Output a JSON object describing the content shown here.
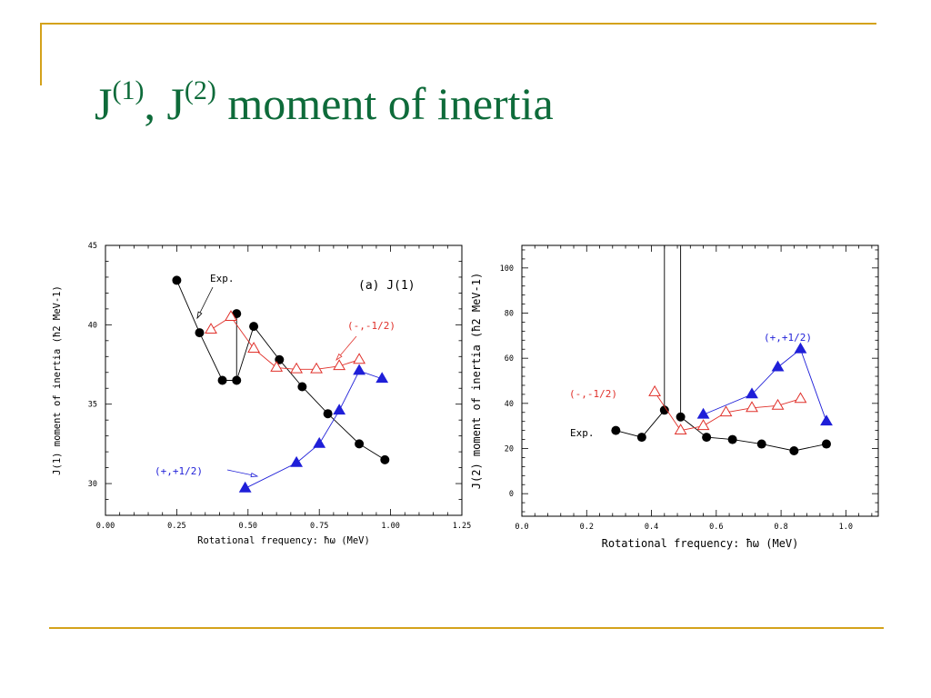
{
  "slide": {
    "title_parts": [
      "J",
      "(1)",
      ", J",
      "(2)",
      " moment of inertia"
    ],
    "colors": {
      "title": "#0e6b3a",
      "decoration": "#d4a21b"
    }
  },
  "chart_data": [
    {
      "type": "scatter",
      "title": "(a) J(1)",
      "xlabel": "Rotational frequency: ħω (MeV)",
      "ylabel": "J(1) moment of inertia (ħ2 MeV-1)",
      "xlim": [
        0,
        1.25
      ],
      "ylim": [
        28,
        45
      ],
      "xticks": [
        0,
        0.25,
        0.5,
        0.75,
        1.0,
        1.25
      ],
      "xtick_labels": [
        "0.00",
        "0.25",
        "0.50",
        "0.75",
        "1.00",
        "1.25"
      ],
      "yticks": [
        30,
        35,
        40,
        45
      ],
      "ytick_labels": [
        "30",
        "35",
        "40",
        "45"
      ],
      "series": [
        {
          "name": "Exp.",
          "color": "#000000",
          "marker": "filled-circle",
          "x": [
            0.25,
            0.33,
            0.41,
            0.46,
            0.46,
            0.46,
            0.52,
            0.61,
            0.69,
            0.78,
            0.89,
            0.98
          ],
          "y": [
            42.8,
            39.5,
            36.5,
            36.5,
            40.7,
            36.5,
            39.9,
            37.8,
            36.1,
            34.4,
            32.5,
            31.5
          ],
          "marker_mask": [
            1,
            1,
            1,
            1,
            1,
            0,
            1,
            1,
            1,
            1,
            1,
            1
          ]
        },
        {
          "name": "(-,-1/2)",
          "color": "#e0302a",
          "marker": "open-triangle",
          "x": [
            0.37,
            0.44,
            0.52,
            0.6,
            0.67,
            0.74,
            0.82,
            0.89
          ],
          "y": [
            39.7,
            40.5,
            38.5,
            37.3,
            37.2,
            37.2,
            37.4,
            37.8
          ]
        },
        {
          "name": "(+,+1/2)",
          "color": "#1f1fd8",
          "marker": "filled-triangle",
          "x": [
            0.49,
            0.67,
            0.75,
            0.82,
            0.89,
            0.97
          ],
          "y": [
            29.7,
            31.3,
            32.5,
            34.6,
            37.1,
            36.6
          ]
        }
      ],
      "annotations": [
        "Exp.",
        "(a) J(1)",
        "(-,-1/2)",
        "(+,+1/2)"
      ]
    },
    {
      "type": "scatter",
      "title": "",
      "xlabel": "Rotational frequency: ħω (MeV)",
      "ylabel": "J(2) moment of inertia (ħ2 MeV-1)",
      "xlim": [
        0,
        1.1
      ],
      "ylim": [
        -10,
        110
      ],
      "xticks": [
        0,
        0.2,
        0.4,
        0.6,
        0.8,
        1.0
      ],
      "xtick_labels": [
        "0.0",
        "0.2",
        "0.4",
        "0.6",
        "0.8",
        "1.0"
      ],
      "yticks": [
        0,
        20,
        40,
        60,
        80,
        100
      ],
      "ytick_labels": [
        "0",
        "20",
        "40",
        "60",
        "80",
        "100"
      ],
      "series": [
        {
          "name": "Exp.",
          "color": "#000000",
          "marker": "filled-circle",
          "x": [
            0.29,
            0.37,
            0.44,
            0.44,
            0.49,
            0.49,
            0.57,
            0.65,
            0.74,
            0.84,
            0.94
          ],
          "y": [
            28,
            25,
            37,
            110,
            110,
            34,
            25,
            24,
            22,
            19,
            22
          ],
          "marker_mask": [
            1,
            1,
            1,
            0,
            0,
            1,
            1,
            1,
            1,
            1,
            1
          ]
        },
        {
          "name": "(-,-1/2)",
          "color": "#e0302a",
          "marker": "open-triangle",
          "x": [
            0.41,
            0.49,
            0.56,
            0.63,
            0.71,
            0.79,
            0.86
          ],
          "y": [
            45,
            28,
            30,
            36,
            38,
            39,
            42
          ]
        },
        {
          "name": "(+,+1/2)",
          "color": "#1f1fd8",
          "marker": "filled-triangle",
          "x": [
            0.56,
            0.71,
            0.79,
            0.86,
            0.94
          ],
          "y": [
            35,
            44,
            56,
            64,
            32
          ]
        }
      ],
      "annotations": [
        "Exp.",
        "(-,-1/2)",
        "(+,+1/2)"
      ]
    }
  ]
}
